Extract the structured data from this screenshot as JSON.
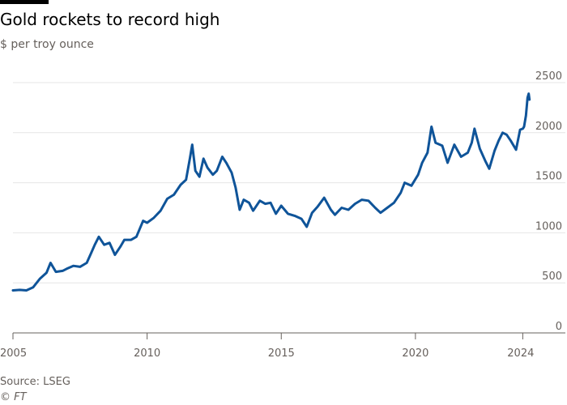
{
  "title": "Gold rockets to record high",
  "subtitle": "$ per troy ounce",
  "source": "Source: LSEG",
  "credit": "© FT",
  "colors": {
    "line": "#0f5499",
    "grid": "#e6e6e6",
    "axis": "#66605c",
    "text": "#66605c"
  },
  "chart_data": {
    "type": "line",
    "title": "Gold rockets to record high",
    "subtitle": "$ per troy ounce",
    "xlabel": "",
    "ylabel": "",
    "xlim": [
      2005,
      2024.2
    ],
    "ylim": [
      0,
      2500
    ],
    "x_ticks": [
      2005,
      2010,
      2015,
      2020,
      2024
    ],
    "y_ticks": [
      0,
      500,
      1000,
      1500,
      2000,
      2500
    ],
    "y_axis_side": "right",
    "grid": "horizontal",
    "legend": "none",
    "series": [
      {
        "color": "#0f5499",
        "points": [
          [
            2005.0,
            425
          ],
          [
            2005.25,
            430
          ],
          [
            2005.5,
            425
          ],
          [
            2005.75,
            455
          ],
          [
            2006.0,
            540
          ],
          [
            2006.25,
            600
          ],
          [
            2006.4,
            700
          ],
          [
            2006.6,
            610
          ],
          [
            2006.85,
            620
          ],
          [
            2007.0,
            640
          ],
          [
            2007.25,
            670
          ],
          [
            2007.5,
            660
          ],
          [
            2007.75,
            700
          ],
          [
            2007.9,
            790
          ],
          [
            2008.05,
            880
          ],
          [
            2008.2,
            960
          ],
          [
            2008.4,
            880
          ],
          [
            2008.6,
            900
          ],
          [
            2008.8,
            780
          ],
          [
            2009.0,
            860
          ],
          [
            2009.15,
            930
          ],
          [
            2009.4,
            930
          ],
          [
            2009.6,
            960
          ],
          [
            2009.85,
            1120
          ],
          [
            2010.0,
            1100
          ],
          [
            2010.25,
            1150
          ],
          [
            2010.5,
            1220
          ],
          [
            2010.75,
            1340
          ],
          [
            2011.0,
            1380
          ],
          [
            2011.25,
            1480
          ],
          [
            2011.45,
            1530
          ],
          [
            2011.6,
            1750
          ],
          [
            2011.68,
            1880
          ],
          [
            2011.8,
            1620
          ],
          [
            2011.95,
            1560
          ],
          [
            2012.1,
            1740
          ],
          [
            2012.25,
            1650
          ],
          [
            2012.45,
            1580
          ],
          [
            2012.6,
            1620
          ],
          [
            2012.8,
            1760
          ],
          [
            2012.95,
            1700
          ],
          [
            2013.15,
            1600
          ],
          [
            2013.3,
            1450
          ],
          [
            2013.45,
            1230
          ],
          [
            2013.6,
            1330
          ],
          [
            2013.8,
            1300
          ],
          [
            2013.95,
            1220
          ],
          [
            2014.2,
            1320
          ],
          [
            2014.4,
            1290
          ],
          [
            2014.6,
            1300
          ],
          [
            2014.8,
            1190
          ],
          [
            2015.0,
            1270
          ],
          [
            2015.25,
            1190
          ],
          [
            2015.5,
            1170
          ],
          [
            2015.75,
            1140
          ],
          [
            2015.95,
            1060
          ],
          [
            2016.15,
            1200
          ],
          [
            2016.35,
            1260
          ],
          [
            2016.6,
            1350
          ],
          [
            2016.85,
            1230
          ],
          [
            2017.0,
            1180
          ],
          [
            2017.25,
            1250
          ],
          [
            2017.5,
            1230
          ],
          [
            2017.75,
            1290
          ],
          [
            2018.0,
            1330
          ],
          [
            2018.25,
            1320
          ],
          [
            2018.5,
            1250
          ],
          [
            2018.7,
            1200
          ],
          [
            2018.95,
            1250
          ],
          [
            2019.2,
            1300
          ],
          [
            2019.45,
            1400
          ],
          [
            2019.6,
            1500
          ],
          [
            2019.85,
            1470
          ],
          [
            2020.1,
            1580
          ],
          [
            2020.25,
            1700
          ],
          [
            2020.45,
            1800
          ],
          [
            2020.6,
            2060
          ],
          [
            2020.75,
            1900
          ],
          [
            2021.0,
            1870
          ],
          [
            2021.2,
            1700
          ],
          [
            2021.45,
            1880
          ],
          [
            2021.7,
            1760
          ],
          [
            2021.95,
            1800
          ],
          [
            2022.1,
            1900
          ],
          [
            2022.2,
            2040
          ],
          [
            2022.4,
            1840
          ],
          [
            2022.6,
            1720
          ],
          [
            2022.75,
            1640
          ],
          [
            2022.95,
            1820
          ],
          [
            2023.1,
            1920
          ],
          [
            2023.25,
            2000
          ],
          [
            2023.4,
            1980
          ],
          [
            2023.55,
            1920
          ],
          [
            2023.75,
            1830
          ],
          [
            2023.9,
            2030
          ],
          [
            2024.0,
            2040
          ],
          [
            2024.05,
            2060
          ],
          [
            2024.12,
            2170
          ],
          [
            2024.18,
            2350
          ],
          [
            2024.22,
            2390
          ],
          [
            2024.25,
            2330
          ]
        ]
      }
    ]
  }
}
